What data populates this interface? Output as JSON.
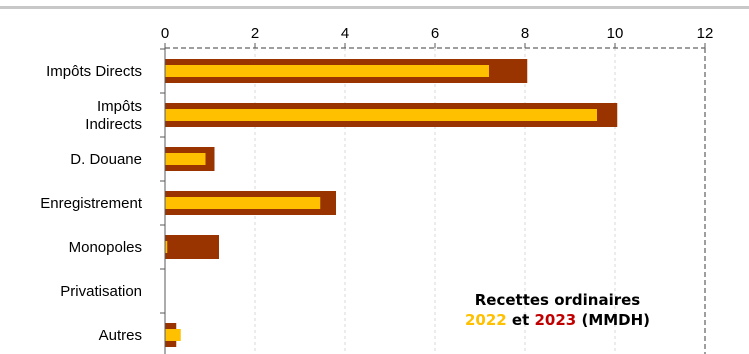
{
  "chart_data": {
    "type": "bar",
    "orientation": "horizontal",
    "categories": [
      [
        "Impôts Directs"
      ],
      [
        "Impôts",
        "Indirects"
      ],
      [
        "D. Douane"
      ],
      [
        "Enregistrement"
      ],
      [
        "Monopoles"
      ],
      [
        "Privatisation"
      ],
      [
        "Autres"
      ]
    ],
    "series": [
      {
        "key": "2023",
        "color": "#993300",
        "values": [
          8.05,
          10.05,
          1.1,
          3.8,
          1.2,
          0.0,
          0.25
        ]
      },
      {
        "key": "2022",
        "color": "#FFC000",
        "values": [
          7.2,
          9.6,
          0.9,
          3.45,
          0.05,
          0.0,
          0.35
        ]
      }
    ],
    "xlim": [
      0,
      12
    ],
    "xticks": [
      0,
      2,
      4,
      6,
      8,
      10,
      12
    ],
    "axis_position": "top",
    "grid": "vertical dashed",
    "annotation": {
      "line1": "Recettes ordinaires",
      "year_a": "2022",
      "connector": " et ",
      "year_b": "2023",
      "unit": " (MMDH)"
    }
  }
}
